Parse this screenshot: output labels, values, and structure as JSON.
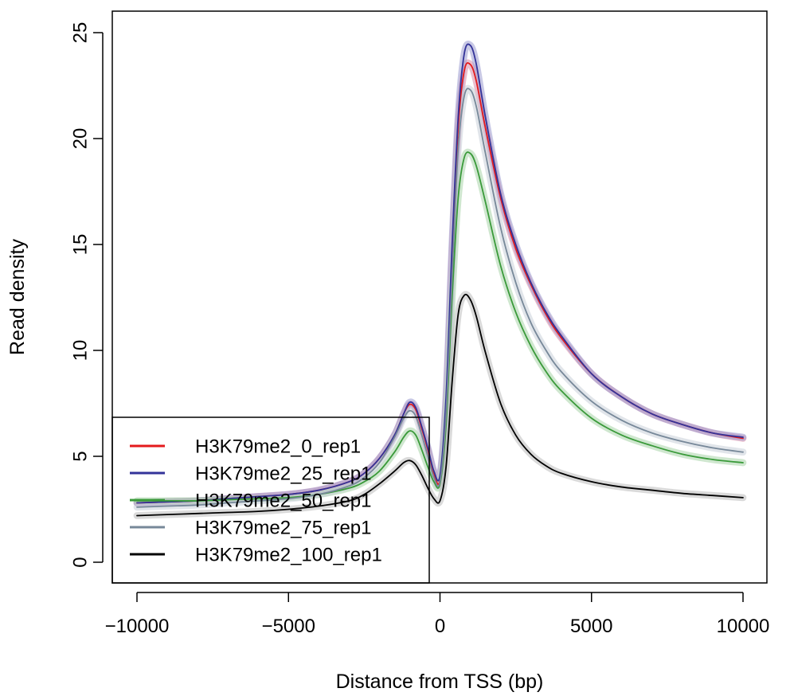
{
  "chart_data": {
    "type": "line",
    "xlabel": "Distance from TSS (bp)",
    "ylabel": "Read density",
    "xlim": [
      -10000,
      10000
    ],
    "ylim": [
      0,
      25
    ],
    "x_ticks": [
      -10000,
      -5000,
      0,
      5000,
      10000
    ],
    "x_tick_labels": [
      "−10000",
      "−5000",
      "0",
      "5000",
      "10000"
    ],
    "y_ticks": [
      0,
      5,
      10,
      15,
      20,
      25
    ],
    "y_tick_labels": [
      "0",
      "5",
      "10",
      "15",
      "20",
      "25"
    ],
    "grid": false,
    "legend_position": "bottom-left",
    "x": [
      -10000,
      -9000,
      -8000,
      -7000,
      -6000,
      -5000,
      -4000,
      -3000,
      -2500,
      -2000,
      -1500,
      -1200,
      -1000,
      -800,
      -600,
      -400,
      -200,
      0,
      200,
      400,
      600,
      800,
      1000,
      1200,
      1500,
      2000,
      2500,
      3000,
      3500,
      4000,
      5000,
      6000,
      7000,
      8000,
      9000,
      10000
    ],
    "series": [
      {
        "name": "H3K79me2_0_rep1",
        "color": "#e41a1c",
        "band": "#d98aa6",
        "values": [
          2.8,
          2.85,
          2.9,
          3.0,
          3.1,
          3.2,
          3.4,
          3.8,
          4.2,
          4.9,
          6.0,
          7.0,
          7.45,
          7.2,
          6.3,
          5.3,
          4.2,
          3.9,
          7.5,
          14.5,
          20.5,
          23.2,
          23.5,
          22.7,
          20.5,
          17.2,
          14.8,
          13.1,
          11.7,
          10.6,
          8.9,
          7.8,
          7.0,
          6.5,
          6.1,
          5.85
        ]
      },
      {
        "name": "H3K79me2_25_rep1",
        "color": "#333399",
        "band": "#9b9bd0",
        "values": [
          2.8,
          2.85,
          2.9,
          3.0,
          3.1,
          3.2,
          3.4,
          3.8,
          4.2,
          4.9,
          6.0,
          7.0,
          7.55,
          7.3,
          6.4,
          5.4,
          4.3,
          4.1,
          7.8,
          15.0,
          21.0,
          24.0,
          24.4,
          23.5,
          21.0,
          17.4,
          15.0,
          13.2,
          11.8,
          10.7,
          8.9,
          7.8,
          7.0,
          6.5,
          6.1,
          5.9
        ]
      },
      {
        "name": "H3K79me2_50_rep1",
        "color": "#3a9a3a",
        "band": "#a8d4a8",
        "values": [
          2.9,
          2.9,
          2.9,
          2.95,
          3.0,
          3.05,
          3.2,
          3.5,
          3.8,
          4.3,
          5.2,
          5.9,
          6.2,
          6.0,
          5.3,
          4.5,
          3.8,
          3.7,
          6.5,
          12.5,
          17.2,
          19.1,
          19.3,
          18.7,
          17.0,
          14.0,
          11.8,
          10.2,
          9.0,
          8.1,
          6.8,
          6.0,
          5.5,
          5.1,
          4.85,
          4.7
        ]
      },
      {
        "name": "H3K79me2_75_rep1",
        "color": "#778899",
        "band": "#c8cfd8",
        "values": [
          2.6,
          2.65,
          2.7,
          2.8,
          2.9,
          3.0,
          3.2,
          3.6,
          4.0,
          4.7,
          5.9,
          6.8,
          7.15,
          6.9,
          6.0,
          5.0,
          4.0,
          3.8,
          7.0,
          13.5,
          19.5,
          22.0,
          22.3,
          21.5,
          19.3,
          15.8,
          13.2,
          11.3,
          10.0,
          9.0,
          7.6,
          6.7,
          6.1,
          5.7,
          5.4,
          5.2
        ]
      },
      {
        "name": "H3K79me2_100_rep1",
        "color": "#000000",
        "band": "#bbbbbb",
        "values": [
          2.2,
          2.25,
          2.3,
          2.35,
          2.4,
          2.5,
          2.65,
          2.9,
          3.2,
          3.7,
          4.3,
          4.7,
          4.8,
          4.6,
          4.1,
          3.5,
          3.0,
          2.9,
          4.5,
          8.5,
          11.7,
          12.6,
          12.4,
          11.6,
          9.9,
          7.5,
          6.0,
          5.1,
          4.55,
          4.2,
          3.8,
          3.55,
          3.4,
          3.25,
          3.15,
          3.05
        ]
      }
    ]
  }
}
